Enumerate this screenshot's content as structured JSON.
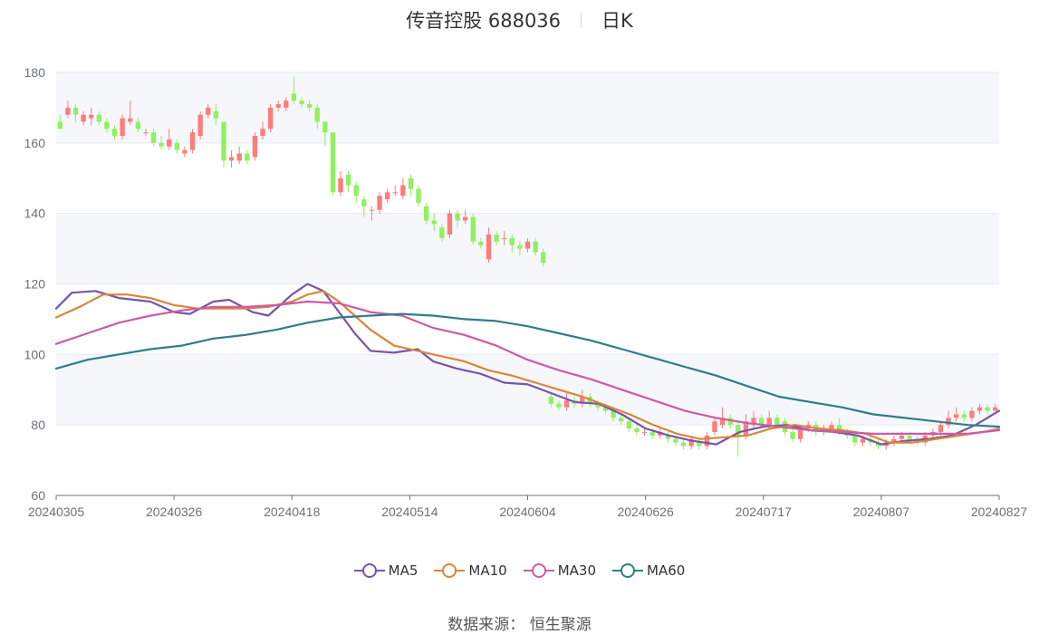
{
  "header": {
    "title": "传音控股 688036",
    "subtitle": "日K"
  },
  "source_text": "数据来源： 恒生聚源",
  "colors": {
    "up": "#fd7c7c",
    "down": "#8ff15f",
    "grid": "#e5eaf3",
    "band": "#f5f7fb",
    "axis": "#6e7079"
  },
  "legend": [
    {
      "name": "MA5",
      "color": "#7755a6"
    },
    {
      "name": "MA10",
      "color": "#d98638"
    },
    {
      "name": "MA30",
      "color": "#cc5ba6"
    },
    {
      "name": "MA60",
      "color": "#2f7d8a"
    }
  ],
  "chart_data": {
    "type": "candlestick",
    "ylim": [
      60,
      180
    ],
    "yticks": [
      60,
      80,
      100,
      120,
      140,
      160,
      180
    ],
    "xtick_labels": [
      "20240305",
      "20240326",
      "20240418",
      "20240514",
      "20240604",
      "20240626",
      "20240717",
      "20240807",
      "20240827"
    ],
    "xtick_indices": [
      0,
      15,
      30,
      45,
      60,
      75,
      90,
      105,
      120
    ],
    "bar_count": 121,
    "candles_first_segment": [
      [
        0,
        166,
        164,
        168,
        164
      ],
      [
        1,
        168,
        170,
        172,
        167
      ],
      [
        2,
        170,
        168,
        171,
        166
      ],
      [
        3,
        166,
        168,
        169,
        165
      ],
      [
        4,
        167,
        168,
        170,
        165
      ],
      [
        5,
        168,
        166,
        169,
        165
      ],
      [
        6,
        166,
        164,
        167,
        163
      ],
      [
        7,
        164,
        162,
        165,
        161
      ],
      [
        8,
        162,
        167,
        168,
        161
      ],
      [
        9,
        166,
        167,
        172,
        165
      ],
      [
        10,
        166,
        164,
        167,
        163
      ],
      [
        11,
        163,
        163,
        164,
        162
      ],
      [
        12,
        163,
        160,
        164,
        159
      ],
      [
        13,
        160,
        159,
        162,
        158
      ],
      [
        14,
        159,
        161,
        164,
        158
      ],
      [
        15,
        160,
        158,
        161,
        157
      ],
      [
        16,
        157,
        158,
        159,
        156
      ],
      [
        17,
        158,
        163,
        164,
        157
      ],
      [
        18,
        162,
        168,
        169,
        161
      ],
      [
        19,
        168,
        170,
        171,
        167
      ],
      [
        20,
        169,
        167,
        171,
        165
      ],
      [
        21,
        166,
        155,
        166,
        153
      ],
      [
        22,
        155,
        156,
        158,
        153
      ],
      [
        23,
        155,
        157,
        159,
        154
      ],
      [
        24,
        157,
        155,
        158,
        154
      ],
      [
        25,
        156,
        162,
        163,
        155
      ],
      [
        26,
        162,
        164,
        166,
        161
      ],
      [
        27,
        164,
        170,
        171,
        163
      ],
      [
        28,
        170,
        171,
        172,
        169
      ],
      [
        29,
        170,
        172,
        173,
        169
      ],
      [
        30,
        174,
        172,
        179,
        171
      ],
      [
        31,
        172,
        171,
        173,
        170
      ],
      [
        32,
        171,
        170,
        172,
        169
      ],
      [
        33,
        170,
        166,
        171,
        164
      ],
      [
        34,
        166,
        163,
        166,
        159
      ],
      [
        35,
        163,
        146,
        163,
        145
      ],
      [
        36,
        146,
        150,
        152,
        145
      ],
      [
        37,
        151,
        148,
        152,
        146
      ],
      [
        38,
        148,
        145,
        149,
        143
      ],
      [
        39,
        144,
        142,
        145,
        139
      ],
      [
        40,
        141,
        141,
        142,
        138
      ],
      [
        41,
        141,
        145,
        146,
        140
      ],
      [
        42,
        144,
        146,
        147,
        143
      ],
      [
        43,
        146,
        146,
        148,
        145
      ],
      [
        44,
        145,
        148,
        150,
        144
      ],
      [
        45,
        150,
        147,
        151,
        145
      ],
      [
        46,
        147,
        143,
        148,
        142
      ],
      [
        47,
        142,
        138,
        143,
        137
      ],
      [
        48,
        138,
        137,
        140,
        135
      ],
      [
        49,
        136,
        133,
        137,
        132
      ],
      [
        50,
        134,
        140,
        141,
        133
      ],
      [
        51,
        140,
        138,
        141,
        136
      ],
      [
        52,
        138,
        139,
        141,
        137
      ],
      [
        53,
        139,
        132,
        140,
        131
      ],
      [
        54,
        132,
        131,
        133,
        130
      ],
      [
        55,
        127,
        134,
        136,
        126
      ],
      [
        56,
        134,
        132,
        135,
        131
      ],
      [
        57,
        133,
        133,
        135,
        131
      ],
      [
        58,
        133,
        131,
        134,
        129
      ],
      [
        59,
        131,
        130,
        132,
        128
      ],
      [
        60,
        130,
        132,
        133,
        129
      ],
      [
        61,
        132,
        129,
        133,
        128
      ],
      [
        62,
        129,
        126,
        130,
        125
      ]
    ],
    "candles_second_segment": [
      [
        63,
        88,
        86,
        89,
        85
      ],
      [
        64,
        86,
        85,
        87,
        84
      ],
      [
        65,
        85,
        87,
        89,
        84
      ],
      [
        66,
        87,
        86,
        88,
        85
      ],
      [
        67,
        86,
        88,
        90,
        85
      ],
      [
        68,
        88,
        86,
        89,
        85
      ],
      [
        69,
        86,
        85,
        87,
        84
      ],
      [
        70,
        85,
        84,
        86,
        83
      ],
      [
        71,
        84,
        82,
        85,
        81
      ],
      [
        72,
        82,
        81,
        83,
        80
      ],
      [
        73,
        81,
        79,
        82,
        78
      ],
      [
        74,
        79,
        78,
        80,
        77
      ],
      [
        75,
        78,
        78,
        79,
        77
      ],
      [
        76,
        78,
        77,
        79,
        76
      ],
      [
        77,
        77,
        78,
        79,
        76
      ],
      [
        78,
        77,
        76,
        78,
        75
      ],
      [
        79,
        76,
        75,
        77,
        74
      ],
      [
        80,
        75,
        74,
        76,
        73
      ],
      [
        81,
        74,
        76,
        77,
        73
      ],
      [
        82,
        75,
        74,
        76,
        73
      ],
      [
        83,
        74,
        77,
        78,
        73
      ],
      [
        84,
        78,
        81,
        82,
        77
      ],
      [
        85,
        80,
        82,
        85,
        79
      ],
      [
        86,
        82,
        80,
        83,
        79
      ],
      [
        87,
        80,
        77,
        81,
        71
      ],
      [
        88,
        77,
        81,
        83,
        76
      ],
      [
        89,
        80,
        82,
        84,
        79
      ],
      [
        90,
        82,
        80,
        83,
        79
      ],
      [
        91,
        80,
        82,
        84,
        79
      ],
      [
        92,
        82,
        80,
        83,
        79
      ],
      [
        93,
        81,
        78,
        82,
        77
      ],
      [
        94,
        78,
        76,
        79,
        75
      ],
      [
        95,
        76,
        79,
        80,
        75
      ],
      [
        96,
        79,
        80,
        81,
        78
      ],
      [
        97,
        80,
        78,
        81,
        77
      ],
      [
        98,
        78,
        79,
        80,
        77
      ],
      [
        99,
        79,
        80,
        81,
        78
      ],
      [
        100,
        80,
        78,
        82,
        77
      ],
      [
        101,
        78,
        77,
        79,
        76
      ],
      [
        102,
        77,
        75,
        78,
        74
      ],
      [
        103,
        75,
        76,
        77,
        74
      ],
      [
        104,
        76,
        75,
        77,
        74
      ],
      [
        105,
        75,
        74,
        76,
        73
      ],
      [
        106,
        74,
        75,
        76,
        73
      ],
      [
        107,
        75,
        76,
        77,
        74
      ],
      [
        108,
        76,
        77,
        78,
        75
      ],
      [
        109,
        77,
        76,
        78,
        75
      ],
      [
        110,
        76,
        75,
        77,
        74
      ],
      [
        111,
        75,
        77,
        78,
        74
      ],
      [
        112,
        77,
        78,
        79,
        76
      ],
      [
        113,
        78,
        80,
        81,
        77
      ],
      [
        114,
        80,
        82,
        84,
        79
      ],
      [
        115,
        82,
        83,
        85,
        81
      ],
      [
        116,
        83,
        82,
        84,
        81
      ],
      [
        117,
        82,
        84,
        85,
        81
      ],
      [
        118,
        84,
        85,
        86,
        83
      ],
      [
        119,
        85,
        84,
        86,
        83
      ],
      [
        120,
        84,
        85,
        86,
        84
      ]
    ],
    "series": [
      {
        "name": "MA5",
        "points": [
          [
            0,
            113
          ],
          [
            2,
            117.5
          ],
          [
            5,
            118
          ],
          [
            8,
            116
          ],
          [
            12,
            115
          ],
          [
            15,
            112
          ],
          [
            17,
            111.5
          ],
          [
            20,
            115
          ],
          [
            22,
            115.5
          ],
          [
            25,
            112
          ],
          [
            27,
            111
          ],
          [
            30,
            117
          ],
          [
            32,
            120
          ],
          [
            34,
            118
          ],
          [
            36,
            112
          ],
          [
            38,
            106
          ],
          [
            40,
            101
          ],
          [
            43,
            100.5
          ],
          [
            46,
            101.5
          ],
          [
            48,
            98
          ],
          [
            51,
            96
          ],
          [
            54,
            94.5
          ],
          [
            57,
            92
          ],
          [
            60,
            91.5
          ],
          [
            63,
            89
          ],
          [
            66,
            86.5
          ],
          [
            69,
            86
          ],
          [
            72,
            83
          ],
          [
            75,
            79
          ],
          [
            78,
            77
          ],
          [
            81,
            75.5
          ],
          [
            84,
            74.5
          ],
          [
            87,
            78
          ],
          [
            90,
            79.5
          ],
          [
            93,
            80
          ],
          [
            96,
            78.5
          ],
          [
            99,
            78
          ],
          [
            102,
            77
          ],
          [
            105,
            74.5
          ],
          [
            108,
            75.5
          ],
          [
            111,
            76
          ],
          [
            114,
            77
          ],
          [
            117,
            80
          ],
          [
            120,
            84
          ]
        ]
      },
      {
        "name": "MA10",
        "points": [
          [
            0,
            110.5
          ],
          [
            3,
            113.5
          ],
          [
            6,
            117
          ],
          [
            9,
            117
          ],
          [
            12,
            116
          ],
          [
            15,
            114
          ],
          [
            18,
            113
          ],
          [
            21,
            113
          ],
          [
            24,
            113
          ],
          [
            27,
            113.5
          ],
          [
            30,
            115
          ],
          [
            32,
            117
          ],
          [
            34,
            118
          ],
          [
            36,
            115
          ],
          [
            38,
            111
          ],
          [
            40,
            107
          ],
          [
            43,
            102.5
          ],
          [
            46,
            101
          ],
          [
            49,
            99.5
          ],
          [
            52,
            98
          ],
          [
            55,
            95.5
          ],
          [
            58,
            94
          ],
          [
            61,
            92
          ],
          [
            64,
            90
          ],
          [
            67,
            88
          ],
          [
            70,
            85.5
          ],
          [
            73,
            83
          ],
          [
            76,
            80
          ],
          [
            79,
            77.5
          ],
          [
            82,
            76
          ],
          [
            85,
            76.5
          ],
          [
            88,
            77
          ],
          [
            91,
            79
          ],
          [
            94,
            80
          ],
          [
            97,
            79
          ],
          [
            100,
            78.5
          ],
          [
            103,
            77.5
          ],
          [
            106,
            75
          ],
          [
            109,
            75
          ],
          [
            112,
            76
          ],
          [
            115,
            77
          ],
          [
            118,
            78
          ],
          [
            120,
            79
          ]
        ]
      },
      {
        "name": "MA30",
        "points": [
          [
            0,
            103
          ],
          [
            4,
            106
          ],
          [
            8,
            109
          ],
          [
            12,
            111
          ],
          [
            16,
            112.5
          ],
          [
            20,
            113.5
          ],
          [
            24,
            113.5
          ],
          [
            28,
            114
          ],
          [
            32,
            115
          ],
          [
            36,
            114.5
          ],
          [
            40,
            112
          ],
          [
            44,
            111
          ],
          [
            48,
            107.5
          ],
          [
            52,
            105.5
          ],
          [
            56,
            102.5
          ],
          [
            60,
            98.5
          ],
          [
            64,
            95.5
          ],
          [
            68,
            93
          ],
          [
            72,
            90
          ],
          [
            76,
            87
          ],
          [
            80,
            84
          ],
          [
            84,
            82
          ],
          [
            88,
            80.5
          ],
          [
            92,
            79.5
          ],
          [
            96,
            78.5
          ],
          [
            100,
            78
          ],
          [
            104,
            77.5
          ],
          [
            108,
            77.5
          ],
          [
            112,
            77.5
          ],
          [
            116,
            77.5
          ],
          [
            120,
            78.5
          ]
        ]
      },
      {
        "name": "MA60",
        "points": [
          [
            0,
            96
          ],
          [
            4,
            98.5
          ],
          [
            8,
            100
          ],
          [
            12,
            101.5
          ],
          [
            16,
            102.5
          ],
          [
            20,
            104.5
          ],
          [
            24,
            105.5
          ],
          [
            28,
            107
          ],
          [
            32,
            109
          ],
          [
            36,
            110.5
          ],
          [
            40,
            111
          ],
          [
            44,
            111.5
          ],
          [
            48,
            111
          ],
          [
            52,
            110
          ],
          [
            56,
            109.5
          ],
          [
            60,
            108
          ],
          [
            64,
            106
          ],
          [
            68,
            104
          ],
          [
            72,
            101.5
          ],
          [
            76,
            99
          ],
          [
            80,
            96.5
          ],
          [
            84,
            94
          ],
          [
            88,
            91
          ],
          [
            92,
            88
          ],
          [
            96,
            86.5
          ],
          [
            100,
            85
          ],
          [
            104,
            83
          ],
          [
            108,
            82
          ],
          [
            112,
            81
          ],
          [
            116,
            80
          ],
          [
            120,
            79.5
          ]
        ]
      }
    ]
  }
}
